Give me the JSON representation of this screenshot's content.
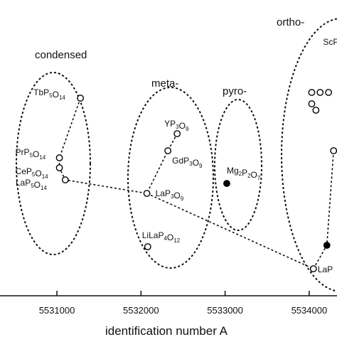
{
  "chart_data": {
    "type": "scatter",
    "xlabel": "identification number A",
    "x_ticks": [
      5531000,
      5532000,
      5533000,
      5534000
    ],
    "xlim": [
      5530000,
      5534300
    ],
    "groups": [
      {
        "label": "condensed"
      },
      {
        "label": "meta-"
      },
      {
        "label": "pyro-"
      },
      {
        "label": "ortho-"
      }
    ],
    "points": [
      {
        "label": "TbP5O14",
        "parts": [
          [
            "Tb",
            ""
          ],
          [
            "P",
            "5"
          ],
          [
            "O",
            "14"
          ]
        ],
        "x": 5531280,
        "y": 138,
        "filled": false
      },
      {
        "label": "PrP5O14",
        "parts": [
          [
            "Pr",
            ""
          ],
          [
            "P",
            "5"
          ],
          [
            "O",
            "14"
          ]
        ],
        "x": 5531030,
        "y": 222,
        "filled": false
      },
      {
        "label": "CeP5O14",
        "parts": [
          [
            "Ce",
            ""
          ],
          [
            "P",
            "5"
          ],
          [
            "O",
            "14"
          ]
        ],
        "x": 5531030,
        "y": 236,
        "filled": false
      },
      {
        "label": "LaP5O14",
        "parts": [
          [
            "La",
            ""
          ],
          [
            "P",
            "5"
          ],
          [
            "O",
            "14"
          ]
        ],
        "x": 5531100,
        "y": 253,
        "filled": false
      },
      {
        "label": "YP3O9",
        "parts": [
          [
            "YP",
            "3"
          ],
          [
            "O",
            "9"
          ]
        ],
        "x": 5532430,
        "y": 188,
        "filled": false
      },
      {
        "label": "GdP3O9",
        "parts": [
          [
            "GdP",
            "3"
          ],
          [
            "O",
            "9"
          ]
        ],
        "x": 5532320,
        "y": 212,
        "filled": false
      },
      {
        "label": "LaP3O9",
        "parts": [
          [
            "LaP",
            "3"
          ],
          [
            "O",
            "9"
          ]
        ],
        "x": 5532070,
        "y": 272,
        "filled": false
      },
      {
        "label": "LiLaP4O12",
        "parts": [
          [
            "LiLaP",
            "4"
          ],
          [
            "O",
            "12"
          ]
        ],
        "x": 5532080,
        "y": 347,
        "filled": false
      },
      {
        "label": "Mg2P2O7",
        "parts": [
          [
            "Mg",
            "2"
          ],
          [
            "P",
            "2"
          ],
          [
            "O",
            "7"
          ]
        ],
        "x": 5533020,
        "y": 258,
        "filled": true
      },
      {
        "label": "",
        "x": 5534030,
        "y": 130,
        "filled": false
      },
      {
        "label": "",
        "x": 5534130,
        "y": 130,
        "filled": false
      },
      {
        "label": "",
        "x": 5534230,
        "y": 130,
        "filled": false
      },
      {
        "label": "",
        "x": 5534030,
        "y": 146,
        "filled": false
      },
      {
        "label": "",
        "x": 5534080,
        "y": 155,
        "filled": false
      },
      {
        "label": "",
        "x": 5534290,
        "y": 212,
        "filled": false
      },
      {
        "label": "",
        "x": 5534210,
        "y": 345,
        "filled": true
      },
      {
        "label": "LaP",
        "x": 5534050,
        "y": 378,
        "filled": false
      },
      {
        "label": "ScP",
        "x": 5534300,
        "y": 58,
        "filled": false
      }
    ],
    "curve": [
      [
        5531280,
        138
      ],
      [
        5531030,
        222
      ],
      [
        5531030,
        236
      ],
      [
        5531100,
        253
      ],
      [
        5532070,
        272
      ],
      [
        5532320,
        212
      ],
      [
        5532430,
        188
      ]
    ],
    "curve2": [
      [
        5532070,
        272
      ],
      [
        5534050,
        378
      ]
    ],
    "curve3": [
      [
        5534050,
        378
      ],
      [
        5534210,
        345
      ],
      [
        5534290,
        212
      ]
    ],
    "grid": false
  }
}
